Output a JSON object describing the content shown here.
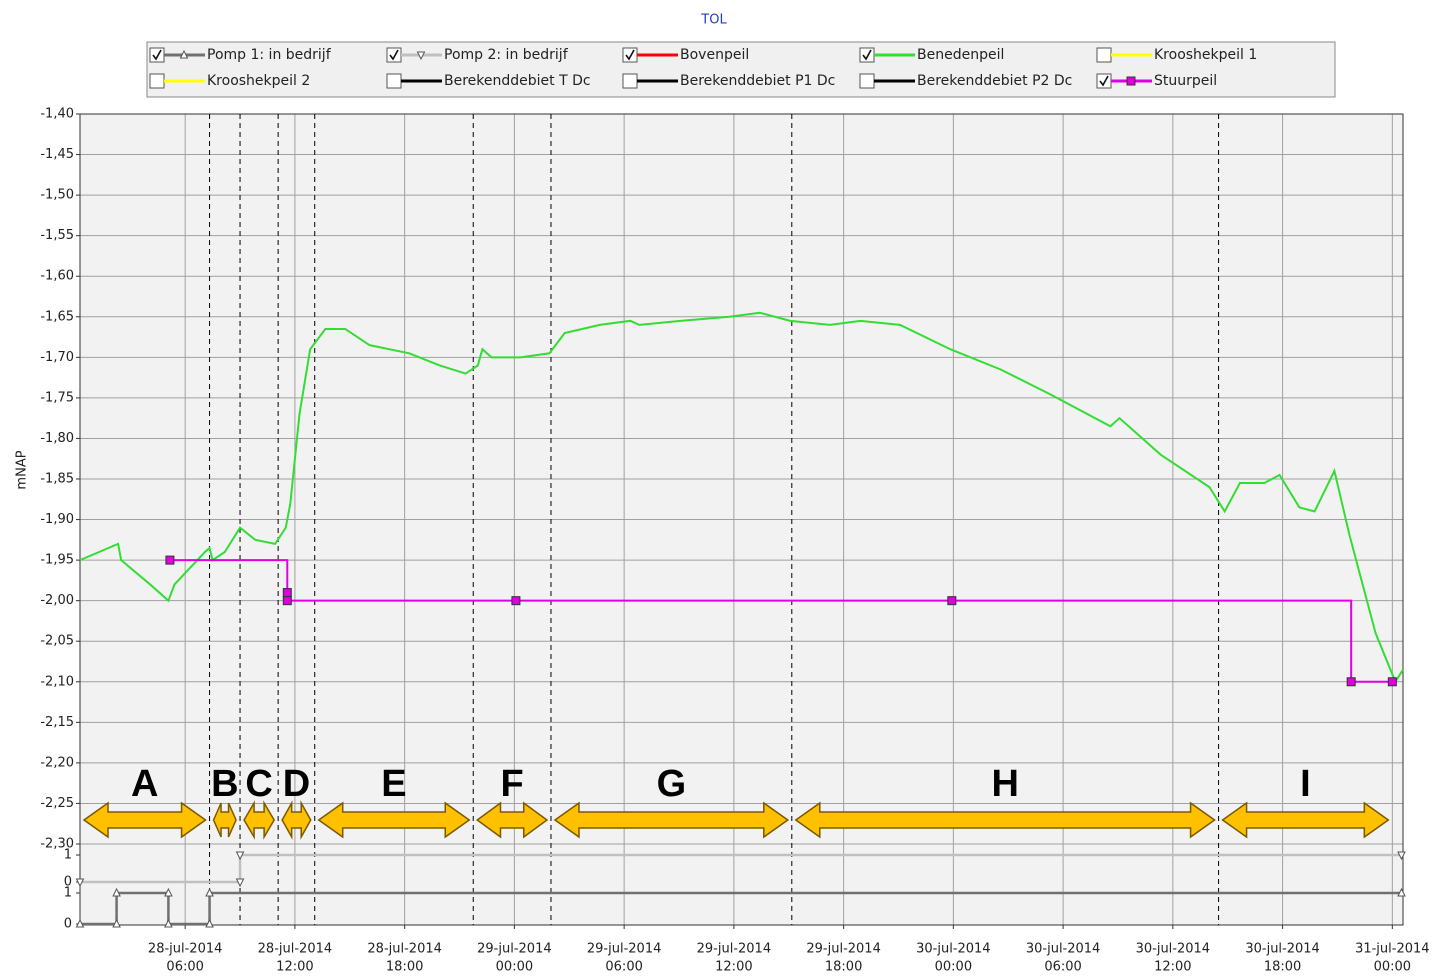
{
  "chart_data": {
    "type": "line",
    "title": "TOL",
    "ylabel": "mNAP",
    "xlim": [
      "2014-07-28T00:15",
      "2014-07-31T00:35"
    ],
    "xticks": [
      {
        "value": "2014-07-28T06:00",
        "label": [
          "28-jul-2014",
          "06:00"
        ]
      },
      {
        "value": "2014-07-28T12:00",
        "label": [
          "28-jul-2014",
          "12:00"
        ]
      },
      {
        "value": "2014-07-28T18:00",
        "label": [
          "28-jul-2014",
          "18:00"
        ]
      },
      {
        "value": "2014-07-29T00:00",
        "label": [
          "29-jul-2014",
          "00:00"
        ]
      },
      {
        "value": "2014-07-29T06:00",
        "label": [
          "29-jul-2014",
          "06:00"
        ]
      },
      {
        "value": "2014-07-29T12:00",
        "label": [
          "29-jul-2014",
          "12:00"
        ]
      },
      {
        "value": "2014-07-29T18:00",
        "label": [
          "29-jul-2014",
          "18:00"
        ]
      },
      {
        "value": "2014-07-30T00:00",
        "label": [
          "30-jul-2014",
          "00:00"
        ]
      },
      {
        "value": "2014-07-30T06:00",
        "label": [
          "30-jul-2014",
          "06:00"
        ]
      },
      {
        "value": "2014-07-30T12:00",
        "label": [
          "30-jul-2014",
          "12:00"
        ]
      },
      {
        "value": "2014-07-30T18:00",
        "label": [
          "30-jul-2014",
          "18:00"
        ]
      },
      {
        "value": "2014-07-31T00:00",
        "label": [
          "31-jul-2014",
          "00:00"
        ]
      }
    ],
    "ylim": [
      -2.3,
      -1.4
    ],
    "yticks": [
      {
        "value": -1.4,
        "label": "-1,40"
      },
      {
        "value": -1.45,
        "label": "-1,45"
      },
      {
        "value": -1.5,
        "label": "-1,50"
      },
      {
        "value": -1.55,
        "label": "-1,55"
      },
      {
        "value": -1.6,
        "label": "-1,60"
      },
      {
        "value": -1.65,
        "label": "-1,65"
      },
      {
        "value": -1.7,
        "label": "-1,70"
      },
      {
        "value": -1.75,
        "label": "-1,75"
      },
      {
        "value": -1.8,
        "label": "-1,80"
      },
      {
        "value": -1.85,
        "label": "-1,85"
      },
      {
        "value": -1.9,
        "label": "-1,90"
      },
      {
        "value": -1.95,
        "label": "-1,95"
      },
      {
        "value": -2.0,
        "label": "-2,00"
      },
      {
        "value": -2.05,
        "label": "-2,05"
      },
      {
        "value": -2.1,
        "label": "-2,10"
      },
      {
        "value": -2.15,
        "label": "-2,15"
      },
      {
        "value": -2.2,
        "label": "-2,20"
      },
      {
        "value": -2.25,
        "label": "-2,25"
      },
      {
        "value": -2.3,
        "label": "-2,30"
      }
    ],
    "y2lim": [
      0,
      1
    ],
    "y2ticks": [
      0,
      1
    ],
    "y3lim": [
      0,
      1
    ],
    "y3ticks": [
      0,
      1
    ],
    "grid": true,
    "series": [
      {
        "name": "Pomp 1: in bedrijf",
        "color": "#707070",
        "checked": true,
        "marker": "triangle-up",
        "axis": "y2",
        "x": [
          "2014-07-28T00:15",
          "2014-07-28T02:15",
          "2014-07-28T02:15",
          "2014-07-28T05:05",
          "2014-07-28T05:05",
          "2014-07-28T07:20",
          "2014-07-28T07:20",
          "2014-07-31T00:30"
        ],
        "values": [
          0,
          0,
          1,
          1,
          0,
          0,
          1,
          1
        ]
      },
      {
        "name": "Pomp 2: in bedrijf",
        "color": "#c0c0c0",
        "checked": true,
        "marker": "triangle-down",
        "axis": "y3",
        "x": [
          "2014-07-28T00:15",
          "2014-07-28T09:00",
          "2014-07-28T09:00",
          "2014-07-31T00:30"
        ],
        "values": [
          0,
          0,
          1,
          1
        ]
      },
      {
        "name": "Bovenpeil",
        "color": "#ff0000",
        "checked": true,
        "x": [],
        "values": []
      },
      {
        "name": "Benedenpeil",
        "color": "#33dd33",
        "checked": true,
        "x": [
          "2014-07-28T00:15",
          "2014-07-28T02:20",
          "2014-07-28T02:30",
          "2014-07-28T04:05",
          "2014-07-28T05:05",
          "2014-07-28T05:25",
          "2014-07-28T06:15",
          "2014-07-28T07:05",
          "2014-07-28T07:20",
          "2014-07-28T07:30",
          "2014-07-28T08:10",
          "2014-07-28T09:00",
          "2014-07-28T09:50",
          "2014-07-28T10:55",
          "2014-07-28T11:30",
          "2014-07-28T11:45",
          "2014-07-28T12:15",
          "2014-07-28T12:50",
          "2014-07-28T13:40",
          "2014-07-28T14:45",
          "2014-07-28T16:05",
          "2014-07-28T18:15",
          "2014-07-28T19:55",
          "2014-07-28T21:20",
          "2014-07-28T22:00",
          "2014-07-28T22:15",
          "2014-07-28T22:45",
          "2014-07-29T00:20",
          "2014-07-29T01:55",
          "2014-07-29T02:45",
          "2014-07-29T04:40",
          "2014-07-29T06:20",
          "2014-07-29T06:50",
          "2014-07-29T09:05",
          "2014-07-29T11:45",
          "2014-07-29T13:25",
          "2014-07-29T15:05",
          "2014-07-29T17:15",
          "2014-07-29T18:55",
          "2014-07-29T21:05",
          "2014-07-29T23:50",
          "2014-07-30T02:35",
          "2014-07-30T05:15",
          "2014-07-30T08:35",
          "2014-07-30T09:05",
          "2014-07-30T11:20",
          "2014-07-30T14:00",
          "2014-07-30T14:50",
          "2014-07-30T15:40",
          "2014-07-30T17:00",
          "2014-07-30T17:50",
          "2014-07-30T18:55",
          "2014-07-30T19:45",
          "2014-07-30T20:50",
          "2014-07-30T21:40",
          "2014-07-30T23:05",
          "2014-07-31T00:10",
          "2014-07-31T00:35"
        ],
        "values": [
          -1.95,
          -1.93,
          -1.95,
          -1.98,
          -2.0,
          -1.98,
          -1.96,
          -1.94,
          -1.935,
          -1.95,
          -1.94,
          -1.91,
          -1.925,
          -1.93,
          -1.91,
          -1.88,
          -1.77,
          -1.69,
          -1.665,
          -1.665,
          -1.685,
          -1.695,
          -1.71,
          -1.72,
          -1.71,
          -1.69,
          -1.7,
          -1.7,
          -1.695,
          -1.67,
          -1.66,
          -1.655,
          -1.66,
          -1.655,
          -1.65,
          -1.645,
          -1.655,
          -1.66,
          -1.655,
          -1.66,
          -1.69,
          -1.715,
          -1.745,
          -1.785,
          -1.775,
          -1.82,
          -1.86,
          -1.89,
          -1.855,
          -1.855,
          -1.845,
          -1.885,
          -1.89,
          -1.84,
          -1.92,
          -2.04,
          -2.1,
          -2.085
        ]
      },
      {
        "name": "Krooshekpeil 1",
        "color": "#ffff00",
        "checked": false,
        "x": [],
        "values": []
      },
      {
        "name": "Krooshekpeil 2",
        "color": "#ffff00",
        "checked": false,
        "x": [],
        "values": []
      },
      {
        "name": "Berekenddebiet T Dc",
        "color": "#000000",
        "checked": false,
        "x": [],
        "values": []
      },
      {
        "name": "Berekenddebiet P1 Dc",
        "color": "#000000",
        "checked": false,
        "x": [],
        "values": []
      },
      {
        "name": "Berekenddebiet P2 Dc",
        "color": "#000000",
        "checked": false,
        "x": [],
        "values": []
      },
      {
        "name": "Stuurpeil",
        "color": "#e000e0",
        "checked": true,
        "marker": "square",
        "step": true,
        "x": [
          "2014-07-28T05:10",
          "2014-07-28T11:35",
          "2014-07-28T11:35",
          "2014-07-29T00:05",
          "2014-07-29T23:55",
          "2014-07-30T21:45",
          "2014-07-31T00:00"
        ],
        "values": [
          -1.95,
          -1.99,
          -2.0,
          -2.0,
          -2.0,
          -2.1,
          -2.1
        ]
      }
    ],
    "phases": [
      {
        "label": "A",
        "start": "2014-07-28T00:15",
        "end": "2014-07-28T07:20"
      },
      {
        "label": "B",
        "start": "2014-07-28T07:20",
        "end": "2014-07-28T09:00"
      },
      {
        "label": "C",
        "start": "2014-07-28T09:00",
        "end": "2014-07-28T11:05"
      },
      {
        "label": "D",
        "start": "2014-07-28T11:05",
        "end": "2014-07-28T13:05"
      },
      {
        "label": "E",
        "start": "2014-07-28T13:05",
        "end": "2014-07-28T21:45"
      },
      {
        "label": "F",
        "start": "2014-07-28T21:45",
        "end": "2014-07-29T02:00"
      },
      {
        "label": "G",
        "start": "2014-07-29T02:00",
        "end": "2014-07-29T15:10"
      },
      {
        "label": "H",
        "start": "2014-07-29T15:10",
        "end": "2014-07-30T14:30"
      },
      {
        "label": "I",
        "start": "2014-07-30T14:30",
        "end": "2014-07-31T00:00"
      }
    ]
  }
}
